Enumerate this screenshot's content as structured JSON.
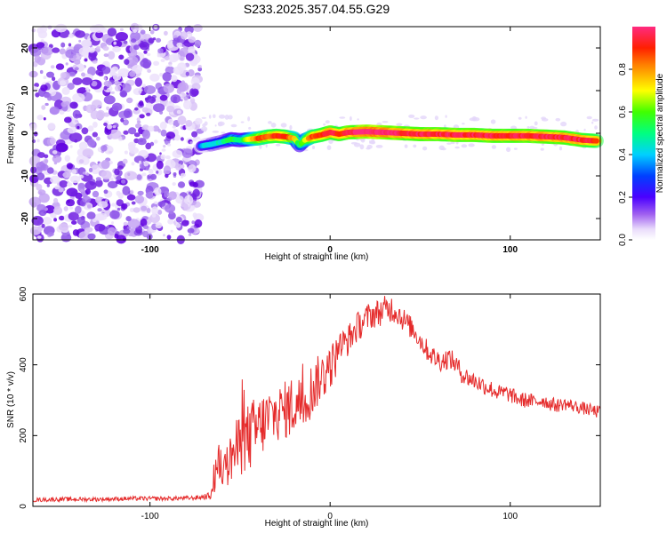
{
  "title": "S233.2025.357.04.55.G29",
  "colors": {
    "snr_line": "#e52b2b",
    "noise_purple": "#7b1fe0",
    "background": "#ffffff",
    "axis": "#000000"
  },
  "chart_data": [
    {
      "id": "spectrogram",
      "type": "heatmap",
      "xlabel": "Height of straight line (km)",
      "ylabel": "Frequency (Hz)",
      "xlim": [
        -165,
        150
      ],
      "ylim": [
        -25,
        25
      ],
      "xticks": [
        -100,
        0,
        100
      ],
      "yticks": [
        -20,
        -10,
        0,
        10,
        20
      ],
      "noise_region_x": [
        -165,
        -72
      ],
      "colorbar": {
        "label": "Normalized spectral amplitude",
        "range": [
          0,
          1
        ],
        "ticks": [
          "0.0",
          "0.2",
          "0.4",
          "0.6",
          "0.8"
        ],
        "tick_values": [
          0.0,
          0.2,
          0.4,
          0.6,
          0.8
        ]
      },
      "signal_track": {
        "x": [
          -72,
          -66,
          -60,
          -55,
          -50,
          -45,
          -40,
          -35,
          -30,
          -25,
          -20,
          -17,
          -14,
          -10,
          -5,
          0,
          5,
          10,
          20,
          30,
          40,
          50,
          60,
          70,
          80,
          90,
          100,
          110,
          120,
          130,
          140,
          148
        ],
        "freq": [
          -3.0,
          -2.6,
          -2.0,
          -1.4,
          -1.6,
          -1.4,
          -1.2,
          -0.8,
          -0.6,
          -0.8,
          -1.2,
          -2.8,
          -1.6,
          -0.8,
          -0.4,
          0.2,
          -0.2,
          0.2,
          0.4,
          0.2,
          0.0,
          -0.2,
          -0.2,
          -0.4,
          -0.4,
          -0.6,
          -0.6,
          -0.6,
          -0.8,
          -1.0,
          -1.6,
          -1.8
        ],
        "amplitude": [
          0.35,
          0.45,
          0.45,
          0.55,
          0.5,
          0.7,
          0.85,
          0.85,
          0.9,
          0.9,
          0.75,
          0.5,
          0.7,
          0.85,
          0.9,
          0.95,
          0.9,
          0.95,
          1.0,
          1.0,
          0.95,
          0.95,
          0.95,
          0.95,
          0.95,
          0.95,
          0.95,
          0.95,
          0.95,
          0.95,
          0.95,
          0.9
        ]
      }
    },
    {
      "id": "snr",
      "type": "line",
      "xlabel": "Height of straight line (km)",
      "ylabel": "SNR (10 * v/v)",
      "xlim": [
        -165,
        150
      ],
      "ylim": [
        0,
        600
      ],
      "xticks": [
        -100,
        0,
        100
      ],
      "yticks": [
        0,
        200,
        400,
        600
      ],
      "series": [
        {
          "name": "SNR",
          "x": [
            -165,
            -150,
            -130,
            -110,
            -90,
            -75,
            -66,
            -64,
            -62,
            -58,
            -54,
            -50,
            -46,
            -42,
            -38,
            -34,
            -30,
            -26,
            -22,
            -18,
            -14,
            -10,
            -6,
            -2,
            2,
            6,
            10,
            14,
            18,
            22,
            26,
            30,
            34,
            38,
            42,
            46,
            50,
            54,
            58,
            62,
            66,
            70,
            74,
            78,
            82,
            86,
            90,
            94,
            98,
            102,
            106,
            110,
            114,
            118,
            122,
            126,
            130,
            134,
            138,
            142,
            146,
            150
          ],
          "values": [
            18,
            20,
            20,
            22,
            22,
            24,
            30,
            90,
            120,
            100,
            150,
            170,
            190,
            210,
            230,
            250,
            260,
            270,
            280,
            290,
            300,
            330,
            360,
            380,
            410,
            450,
            470,
            500,
            520,
            540,
            545,
            555,
            560,
            545,
            520,
            500,
            470,
            440,
            420,
            410,
            420,
            400,
            370,
            360,
            350,
            340,
            330,
            320,
            320,
            310,
            300,
            300,
            295,
            300,
            290,
            285,
            290,
            285,
            280,
            275,
            270,
            265
          ],
          "noise_amplitude": [
            6,
            6,
            6,
            6,
            6,
            6,
            10,
            60,
            60,
            60,
            80,
            90,
            100,
            100,
            90,
            90,
            80,
            80,
            90,
            80,
            80,
            80,
            70,
            70,
            60,
            50,
            45,
            45,
            40,
            40,
            40,
            40,
            40,
            35,
            35,
            30,
            30,
            30,
            30,
            30,
            30,
            28,
            28,
            26,
            26,
            25,
            25,
            24,
            24,
            22,
            22,
            22,
            20,
            20,
            20,
            20,
            18,
            18,
            18,
            18,
            18,
            18
          ]
        }
      ]
    }
  ]
}
